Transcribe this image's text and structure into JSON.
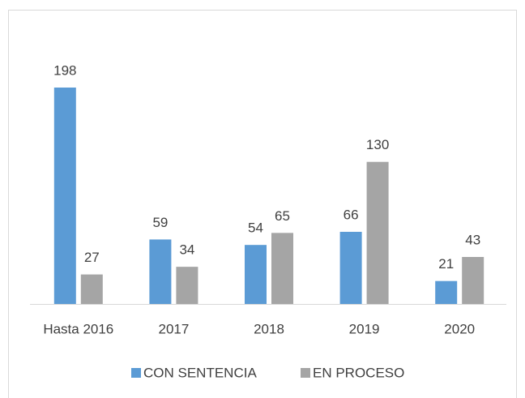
{
  "chart_data": {
    "type": "bar",
    "categories": [
      "Hasta 2016",
      "2017",
      "2018",
      "2019",
      "2020"
    ],
    "series": [
      {
        "name": "CON SENTENCIA",
        "color": "#5b9bd5",
        "values": [
          198,
          59,
          54,
          66,
          21
        ]
      },
      {
        "name": "EN PROCESO",
        "color": "#a5a5a5",
        "values": [
          27,
          34,
          65,
          130,
          43
        ]
      }
    ],
    "legend": "bottom"
  }
}
